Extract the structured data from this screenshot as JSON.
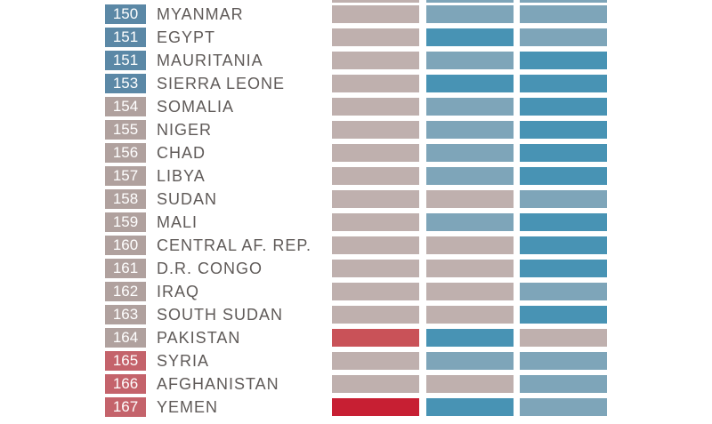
{
  "colors": {
    "rank_blue": "#5b88a6",
    "rank_taupe": "#b0a19e",
    "rank_red": "#c4636b",
    "cell_grey": "#bfb0ae",
    "cell_steel": "#7ea5b9",
    "cell_blue": "#4893b4",
    "cell_red_light": "#c95258",
    "cell_red": "#c71f33"
  },
  "chart_data": {
    "type": "table",
    "rows": [
      {
        "rank": "150",
        "country": "MYANMAR",
        "rank_color": "rank_blue",
        "cells": [
          "cell_grey",
          "cell_steel",
          "cell_steel"
        ]
      },
      {
        "rank": "151",
        "country": "EGYPT",
        "rank_color": "rank_blue",
        "cells": [
          "cell_grey",
          "cell_blue",
          "cell_steel"
        ]
      },
      {
        "rank": "151",
        "country": "MAURITANIA",
        "rank_color": "rank_blue",
        "cells": [
          "cell_grey",
          "cell_steel",
          "cell_blue"
        ]
      },
      {
        "rank": "153",
        "country": "SIERRA LEONE",
        "rank_color": "rank_blue",
        "cells": [
          "cell_grey",
          "cell_blue",
          "cell_blue"
        ]
      },
      {
        "rank": "154",
        "country": "SOMALIA",
        "rank_color": "rank_taupe",
        "cells": [
          "cell_grey",
          "cell_steel",
          "cell_blue"
        ]
      },
      {
        "rank": "155",
        "country": "NIGER",
        "rank_color": "rank_taupe",
        "cells": [
          "cell_grey",
          "cell_steel",
          "cell_blue"
        ]
      },
      {
        "rank": "156",
        "country": "CHAD",
        "rank_color": "rank_taupe",
        "cells": [
          "cell_grey",
          "cell_steel",
          "cell_blue"
        ]
      },
      {
        "rank": "157",
        "country": "LIBYA",
        "rank_color": "rank_taupe",
        "cells": [
          "cell_grey",
          "cell_steel",
          "cell_blue"
        ]
      },
      {
        "rank": "158",
        "country": "SUDAN",
        "rank_color": "rank_taupe",
        "cells": [
          "cell_grey",
          "cell_grey",
          "cell_steel"
        ]
      },
      {
        "rank": "159",
        "country": "MALI",
        "rank_color": "rank_taupe",
        "cells": [
          "cell_grey",
          "cell_steel",
          "cell_blue"
        ]
      },
      {
        "rank": "160",
        "country": "CENTRAL AF. REP.",
        "rank_color": "rank_taupe",
        "cells": [
          "cell_grey",
          "cell_grey",
          "cell_blue"
        ]
      },
      {
        "rank": "161",
        "country": "D.R. CONGO",
        "rank_color": "rank_taupe",
        "cells": [
          "cell_grey",
          "cell_grey",
          "cell_blue"
        ]
      },
      {
        "rank": "162",
        "country": "IRAQ",
        "rank_color": "rank_taupe",
        "cells": [
          "cell_grey",
          "cell_grey",
          "cell_steel"
        ]
      },
      {
        "rank": "163",
        "country": "SOUTH SUDAN",
        "rank_color": "rank_taupe",
        "cells": [
          "cell_grey",
          "cell_grey",
          "cell_blue"
        ]
      },
      {
        "rank": "164",
        "country": "PAKISTAN",
        "rank_color": "rank_taupe",
        "cells": [
          "cell_red_light",
          "cell_blue",
          "cell_grey"
        ]
      },
      {
        "rank": "165",
        "country": "SYRIA",
        "rank_color": "rank_red",
        "cells": [
          "cell_grey",
          "cell_steel",
          "cell_steel"
        ]
      },
      {
        "rank": "166",
        "country": "AFGHANISTAN",
        "rank_color": "rank_red",
        "cells": [
          "cell_grey",
          "cell_grey",
          "cell_steel"
        ]
      },
      {
        "rank": "167",
        "country": "YEMEN",
        "rank_color": "rank_red",
        "cells": [
          "cell_red",
          "cell_blue",
          "cell_steel"
        ]
      }
    ]
  }
}
